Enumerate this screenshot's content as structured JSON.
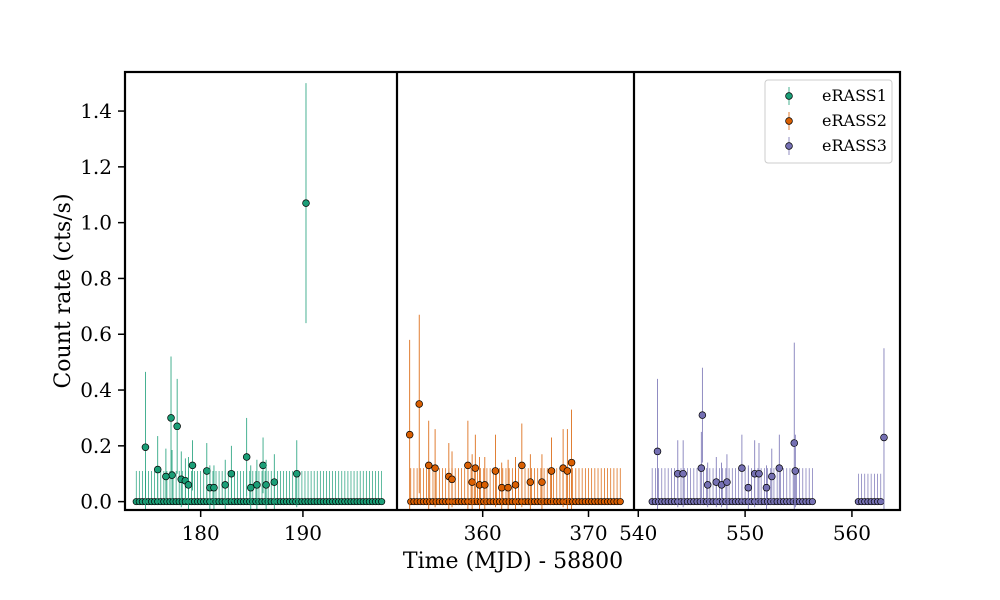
{
  "chart_data": {
    "type": "scatter",
    "title": "",
    "xlabel": "Time (MJD) - 58800",
    "ylabel": "Count rate (cts/s)",
    "ylim": [
      -0.03,
      1.54
    ],
    "yticks": [
      0.0,
      0.2,
      0.4,
      0.6,
      0.8,
      1.0,
      1.2,
      1.4
    ],
    "ytick_labels": [
      "0.0",
      "0.2",
      "0.4",
      "0.6",
      "0.8",
      "1.0",
      "1.2",
      "1.4"
    ],
    "legend": {
      "placement": "top-right",
      "entries": [
        "eRASS1",
        "eRASS2",
        "eRASS3"
      ]
    },
    "grid": false,
    "panels": [
      {
        "name": "eRASS1",
        "color": "#1b9e77",
        "xlim": [
          172.6,
          199.2
        ],
        "xticks": [
          180,
          190
        ],
        "xtick_labels": [
          "180",
          "190"
        ],
        "points": [
          [
            174.6,
            0.195,
            0.27
          ],
          [
            175.8,
            0.115,
            0.12
          ],
          [
            177.1,
            0.3,
            0.22
          ],
          [
            177.7,
            0.27,
            0.17
          ],
          [
            177.2,
            0.095,
            0.09
          ],
          [
            176.6,
            0.09,
            0.1
          ],
          [
            178.1,
            0.08,
            0.1
          ],
          [
            178.5,
            0.075,
            0.08
          ],
          [
            178.8,
            0.06,
            0.1
          ],
          [
            179.2,
            0.13,
            0.09
          ],
          [
            180.6,
            0.11,
            0.1
          ],
          [
            180.9,
            0.05,
            0.08
          ],
          [
            181.3,
            0.05,
            0.08
          ],
          [
            182.4,
            0.06,
            0.09
          ],
          [
            183.0,
            0.1,
            0.1
          ],
          [
            184.5,
            0.16,
            0.14
          ],
          [
            184.9,
            0.05,
            0.08
          ],
          [
            185.5,
            0.06,
            0.09
          ],
          [
            186.1,
            0.13,
            0.1
          ],
          [
            186.4,
            0.06,
            0.09
          ],
          [
            187.2,
            0.07,
            0.1
          ],
          [
            189.4,
            0.1,
            0.12
          ],
          [
            190.3,
            1.07,
            0.43
          ]
        ],
        "zeros": {
          "start": 173.7,
          "end": 197.9,
          "step": 0.3,
          "err": 0.11
        }
      },
      {
        "name": "eRASS2",
        "color": "#d95f02",
        "xlim": [
          351.9,
          374.3
        ],
        "xticks": [
          360,
          370
        ],
        "xtick_labels": [
          "360",
          "370"
        ],
        "points": [
          [
            353.1,
            0.24,
            0.34
          ],
          [
            354.0,
            0.35,
            0.32
          ],
          [
            354.9,
            0.13,
            0.16
          ],
          [
            355.5,
            0.12,
            0.14
          ],
          [
            356.8,
            0.09,
            0.12
          ],
          [
            357.1,
            0.08,
            0.1
          ],
          [
            358.6,
            0.13,
            0.16
          ],
          [
            359.0,
            0.07,
            0.1
          ],
          [
            359.3,
            0.12,
            0.12
          ],
          [
            359.7,
            0.06,
            0.1
          ],
          [
            360.2,
            0.06,
            0.1
          ],
          [
            361.2,
            0.11,
            0.13
          ],
          [
            361.8,
            0.05,
            0.09
          ],
          [
            362.4,
            0.05,
            0.1
          ],
          [
            363.1,
            0.06,
            0.1
          ],
          [
            363.7,
            0.13,
            0.15
          ],
          [
            364.5,
            0.07,
            0.1
          ],
          [
            365.6,
            0.07,
            0.1
          ],
          [
            366.5,
            0.11,
            0.12
          ],
          [
            367.6,
            0.12,
            0.14
          ],
          [
            368.0,
            0.11,
            0.15
          ],
          [
            368.4,
            0.14,
            0.19
          ]
        ],
        "zeros": {
          "start": 353.2,
          "end": 373.0,
          "step": 0.3,
          "err": 0.12
        }
      },
      {
        "name": "eRASS3",
        "color": "#7570b3",
        "xlim": [
          539.6,
          564.5
        ],
        "xticks": [
          540,
          550,
          560
        ],
        "xtick_labels": [
          "540",
          "550",
          "560"
        ],
        "points": [
          [
            541.8,
            0.18,
            0.26
          ],
          [
            543.7,
            0.1,
            0.12
          ],
          [
            544.2,
            0.1,
            0.12
          ],
          [
            545.9,
            0.12,
            0.13
          ],
          [
            546.0,
            0.31,
            0.17
          ],
          [
            546.5,
            0.06,
            0.08
          ],
          [
            547.3,
            0.07,
            0.09
          ],
          [
            547.8,
            0.06,
            0.08
          ],
          [
            548.3,
            0.07,
            0.1
          ],
          [
            549.7,
            0.12,
            0.12
          ],
          [
            550.3,
            0.05,
            0.08
          ],
          [
            550.9,
            0.1,
            0.12
          ],
          [
            551.3,
            0.1,
            0.11
          ],
          [
            552.0,
            0.05,
            0.08
          ],
          [
            552.5,
            0.09,
            0.1
          ],
          [
            553.2,
            0.12,
            0.12
          ],
          [
            554.6,
            0.21,
            0.36
          ],
          [
            554.7,
            0.11,
            0.13
          ],
          [
            563.0,
            0.23,
            0.32
          ]
        ],
        "zeros": [
          {
            "start": 541.3,
            "end": 556.3,
            "step": 0.3,
            "err": 0.12
          },
          {
            "start": 560.6,
            "end": 562.8,
            "step": 0.3,
            "err": 0.1
          }
        ]
      }
    ]
  }
}
